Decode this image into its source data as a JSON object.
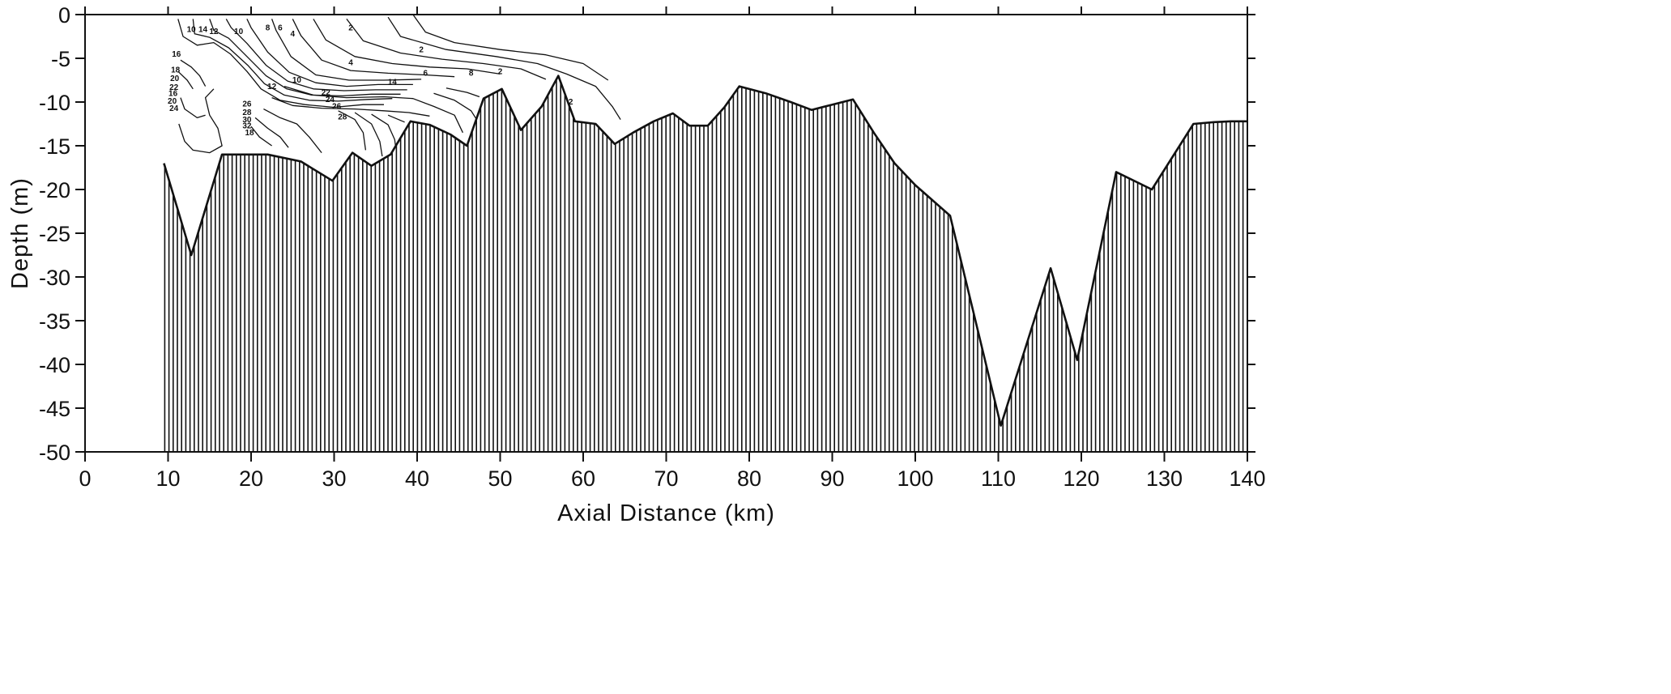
{
  "chart_data": {
    "type": "area",
    "title": "",
    "xlabel": "Axial Distance (km)",
    "ylabel": "Depth (m)",
    "xlim": [
      0,
      140
    ],
    "ylim": [
      -50,
      0
    ],
    "x_ticks": [
      0,
      10,
      20,
      30,
      40,
      50,
      60,
      70,
      80,
      90,
      100,
      110,
      120,
      130,
      140
    ],
    "y_ticks": [
      0,
      -5,
      -10,
      -15,
      -20,
      -25,
      -30,
      -35,
      -40,
      -45,
      -50
    ],
    "grid": false,
    "fill_pattern": "vertical-hatch",
    "series": [
      {
        "x": [
          9.5,
          12.8,
          16.5,
          20.5,
          22.0,
          26.0,
          29.8,
          32.2,
          34.5,
          36.8,
          39.2,
          41.5,
          44.0,
          46.0,
          48.0,
          50.2,
          52.5,
          55.0,
          57.0,
          59.0,
          61.5,
          63.8,
          66.0,
          68.5,
          70.8,
          72.8,
          75.0,
          77.0,
          78.8,
          82.0,
          85.0,
          87.5,
          90.0,
          92.5,
          95.0,
          97.5,
          100.0,
          104.2,
          110.3,
          116.3,
          119.5,
          124.2,
          128.5,
          133.5,
          136.0,
          138.0,
          140.0
        ],
        "y": [
          -17.0,
          -27.5,
          -16.0,
          -16.0,
          -16.0,
          -16.8,
          -19.0,
          -15.8,
          -17.3,
          -16.0,
          -12.2,
          -12.6,
          -13.7,
          -15.0,
          -9.6,
          -8.5,
          -13.2,
          -10.5,
          -7.0,
          -12.2,
          -12.5,
          -14.8,
          -13.5,
          -12.2,
          -11.3,
          -12.7,
          -12.7,
          -10.6,
          -8.2,
          -9.0,
          -10.0,
          -10.9,
          -10.3,
          -9.7,
          -13.5,
          -17.0,
          -19.5,
          -23.0,
          -47.0,
          -29.0,
          -39.5,
          -18.0,
          -20.0,
          -12.5,
          -12.3,
          -12.2,
          -12.2
        ]
      }
    ],
    "contour_labels": [
      "10",
      "14",
      "12",
      "10",
      "8",
      "6",
      "4",
      "2",
      "2",
      "2",
      "2",
      "4",
      "6",
      "8",
      "10",
      "12",
      "14",
      "16",
      "18",
      "20",
      "22",
      "16",
      "20",
      "24",
      "26",
      "28",
      "30",
      "32",
      "18",
      "22",
      "24",
      "26",
      "28"
    ],
    "contours": [
      [
        [
          11.2,
          -0.5
        ],
        [
          11.8,
          -2.5
        ],
        [
          13.5,
          -3.5
        ],
        [
          15.5,
          -3.2
        ],
        [
          17.5,
          -4.5
        ],
        [
          19.5,
          -6.5
        ],
        [
          21.2,
          -8.5
        ],
        [
          23.5,
          -9.8
        ],
        [
          26.5,
          -10.3
        ],
        [
          30.0,
          -10.6
        ],
        [
          33.5,
          -10.3
        ],
        [
          36.0,
          -10.3
        ]
      ],
      [
        [
          13.0,
          -0.5
        ],
        [
          13.2,
          -2.2
        ],
        [
          15.0,
          -2.6
        ],
        [
          17.3,
          -3.8
        ],
        [
          19.6,
          -5.8
        ],
        [
          21.6,
          -7.9
        ],
        [
          24.0,
          -9.2
        ],
        [
          27.0,
          -9.8
        ],
        [
          30.5,
          -9.9
        ],
        [
          34.0,
          -9.7
        ],
        [
          37.0,
          -9.6
        ]
      ],
      [
        [
          15.0,
          -0.5
        ],
        [
          15.5,
          -1.8
        ],
        [
          17.3,
          -2.7
        ],
        [
          19.5,
          -4.8
        ],
        [
          21.8,
          -7.0
        ],
        [
          24.3,
          -8.5
        ],
        [
          27.3,
          -9.2
        ],
        [
          31.0,
          -9.3
        ],
        [
          34.5,
          -9.1
        ],
        [
          38.0,
          -9.1
        ]
      ],
      [
        [
          17.0,
          -0.5
        ],
        [
          17.6,
          -1.5
        ],
        [
          19.5,
          -3.3
        ],
        [
          21.8,
          -5.8
        ],
        [
          24.4,
          -7.6
        ],
        [
          27.5,
          -8.5
        ],
        [
          31.2,
          -8.7
        ],
        [
          35.0,
          -8.6
        ],
        [
          38.8,
          -8.6
        ]
      ],
      [
        [
          19.5,
          -0.5
        ],
        [
          20.0,
          -1.5
        ],
        [
          22.0,
          -4.3
        ],
        [
          24.6,
          -6.6
        ],
        [
          27.8,
          -7.8
        ],
        [
          31.5,
          -8.2
        ],
        [
          35.3,
          -8.0
        ],
        [
          39.5,
          -8.0
        ]
      ],
      [
        [
          22.5,
          -0.5
        ],
        [
          23.0,
          -1.8
        ],
        [
          24.8,
          -4.8
        ],
        [
          27.8,
          -6.9
        ],
        [
          31.8,
          -7.5
        ],
        [
          36.0,
          -7.5
        ],
        [
          40.5,
          -7.4
        ]
      ],
      [
        [
          25.0,
          -0.5
        ],
        [
          26.0,
          -2.4
        ],
        [
          28.5,
          -5.2
        ],
        [
          32.0,
          -6.4
        ],
        [
          36.5,
          -6.7
        ],
        [
          41.0,
          -6.9
        ],
        [
          44.5,
          -7.1
        ]
      ],
      [
        [
          27.5,
          -0.5
        ],
        [
          29.0,
          -2.9
        ],
        [
          32.5,
          -4.8
        ],
        [
          37.0,
          -5.6
        ],
        [
          41.5,
          -6.0
        ],
        [
          46.0,
          -6.2
        ],
        [
          50.0,
          -6.8
        ]
      ],
      [
        [
          31.5,
          -0.5
        ],
        [
          33.5,
          -3.0
        ],
        [
          38.0,
          -4.4
        ],
        [
          43.0,
          -5.1
        ],
        [
          48.0,
          -5.6
        ],
        [
          52.5,
          -6.2
        ],
        [
          55.5,
          -7.4
        ]
      ],
      [
        [
          36.5,
          -0.3
        ],
        [
          38.0,
          -2.5
        ],
        [
          43.5,
          -4.0
        ],
        [
          49.5,
          -4.8
        ],
        [
          54.5,
          -5.6
        ],
        [
          58.0,
          -6.8
        ],
        [
          61.5,
          -8.2
        ],
        [
          63.5,
          -10.5
        ],
        [
          64.5,
          -12.0
        ]
      ],
      [
        [
          39.5,
          0.0
        ],
        [
          41.0,
          -2.0
        ],
        [
          44.5,
          -3.2
        ],
        [
          50.0,
          -4.0
        ],
        [
          55.5,
          -4.6
        ],
        [
          60.0,
          -5.6
        ],
        [
          63.0,
          -7.5
        ]
      ],
      [
        [
          24.0,
          -8.2
        ],
        [
          27.5,
          -9.2
        ],
        [
          31.5,
          -9.5
        ],
        [
          36.0,
          -9.4
        ],
        [
          39.5,
          -9.6
        ],
        [
          42.0,
          -10.5
        ],
        [
          44.5,
          -11.5
        ],
        [
          45.5,
          -13.5
        ]
      ],
      [
        [
          22.5,
          -9.5
        ],
        [
          25.0,
          -10.4
        ],
        [
          28.5,
          -10.7
        ],
        [
          32.5,
          -10.8
        ],
        [
          36.0,
          -11.0
        ],
        [
          39.0,
          -11.2
        ],
        [
          41.5,
          -11.6
        ]
      ],
      [
        [
          21.5,
          -10.8
        ],
        [
          23.5,
          -11.8
        ],
        [
          25.5,
          -12.5
        ],
        [
          27.0,
          -14.0
        ],
        [
          28.5,
          -15.8
        ]
      ],
      [
        [
          20.5,
          -11.8
        ],
        [
          22.0,
          -13.0
        ],
        [
          23.5,
          -14.0
        ],
        [
          24.5,
          -15.2
        ]
      ],
      [
        [
          20.0,
          -12.8
        ],
        [
          21.0,
          -14.0
        ],
        [
          22.5,
          -15.0
        ]
      ],
      [
        [
          11.5,
          -5.2
        ],
        [
          12.8,
          -6.0
        ],
        [
          13.8,
          -7.0
        ],
        [
          14.5,
          -8.2
        ]
      ],
      [
        [
          11.2,
          -6.5
        ],
        [
          12.3,
          -7.5
        ],
        [
          13.0,
          -8.5
        ]
      ],
      [
        [
          11.5,
          -9.5
        ],
        [
          12.0,
          -10.8
        ],
        [
          13.5,
          -11.8
        ],
        [
          14.5,
          -11.5
        ]
      ],
      [
        [
          11.3,
          -12.5
        ],
        [
          12.0,
          -14.5
        ],
        [
          13.0,
          -15.5
        ],
        [
          15.0,
          -15.8
        ],
        [
          16.5,
          -15.0
        ],
        [
          16.0,
          -13.0
        ],
        [
          15.0,
          -11.5
        ],
        [
          14.5,
          -9.5
        ],
        [
          15.5,
          -8.5
        ]
      ],
      [
        [
          30.5,
          -11.0
        ],
        [
          32.5,
          -12.0
        ],
        [
          33.5,
          -13.5
        ],
        [
          33.8,
          -15.5
        ]
      ],
      [
        [
          32.5,
          -11.2
        ],
        [
          34.5,
          -12.5
        ],
        [
          35.5,
          -14.5
        ],
        [
          35.8,
          -16.2
        ]
      ],
      [
        [
          34.5,
          -11.4
        ],
        [
          36.5,
          -12.6
        ],
        [
          37.3,
          -14.3
        ],
        [
          37.5,
          -15.8
        ]
      ],
      [
        [
          36.5,
          -11.5
        ],
        [
          38.5,
          -12.3
        ]
      ],
      [
        [
          42.0,
          -9.0
        ],
        [
          44.5,
          -9.8
        ],
        [
          46.5,
          -11.0
        ],
        [
          47.5,
          -12.5
        ]
      ],
      [
        [
          43.5,
          -8.4
        ],
        [
          46.0,
          -8.9
        ],
        [
          47.5,
          -9.4
        ]
      ]
    ]
  }
}
